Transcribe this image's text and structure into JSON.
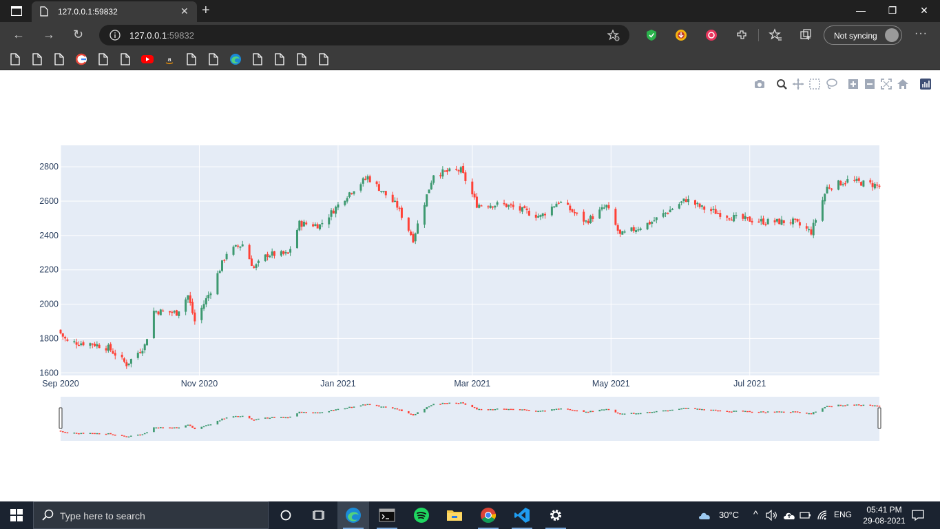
{
  "browser": {
    "tab_title": "127.0.0.1:59832",
    "url_host": "127.0.0.1",
    "url_port": ":59832",
    "sync_label": "Not syncing",
    "bookmarks": [
      "file-icon",
      "file-icon",
      "file-icon",
      "google-icon",
      "file-icon",
      "file-icon",
      "youtube-icon",
      "amazon-icon",
      "file-icon",
      "file-icon",
      "edge-icon",
      "file-icon",
      "file-icon",
      "file-icon",
      "file-icon"
    ]
  },
  "modebar": [
    "camera-icon",
    "zoom-icon",
    "pan-icon",
    "box-select-icon",
    "lasso-icon",
    "zoom-in-icon",
    "zoom-out-icon",
    "autoscale-icon",
    "reset-axes-icon",
    "plotly-logo-icon"
  ],
  "chart_data": {
    "type": "candlestick",
    "x_start": "2020-09-01",
    "x_end": "2021-08-27",
    "x_ticks": [
      {
        "date": "2020-09-01",
        "label": "Sep 2020"
      },
      {
        "date": "2020-11-01",
        "label": "Nov 2020"
      },
      {
        "date": "2021-01-01",
        "label": "Jan 2021"
      },
      {
        "date": "2021-03-01",
        "label": "Mar 2021"
      },
      {
        "date": "2021-05-01",
        "label": "May 2021"
      },
      {
        "date": "2021-07-01",
        "label": "Jul 2021"
      }
    ],
    "y_ticks": [
      1600,
      1800,
      2000,
      2200,
      2400,
      2600,
      2800
    ],
    "ylim": [
      1585,
      2925
    ],
    "grid": true,
    "legend": "none",
    "rangeslider": true,
    "colors": {
      "increasing": "#3d9970",
      "decreasing": "#ff4136",
      "plot_bg": "#e5ecf6"
    },
    "close_anchors": [
      [
        "2020-09-01",
        1830
      ],
      [
        "2020-09-04",
        1780
      ],
      [
        "2020-09-15",
        1770
      ],
      [
        "2020-09-22",
        1745
      ],
      [
        "2020-09-30",
        1650
      ],
      [
        "2020-10-08",
        1760
      ],
      [
        "2020-10-12",
        1960
      ],
      [
        "2020-10-22",
        1950
      ],
      [
        "2020-10-27",
        2050
      ],
      [
        "2020-10-30",
        1900
      ],
      [
        "2020-11-06",
        2080
      ],
      [
        "2020-11-13",
        2300
      ],
      [
        "2020-11-20",
        2350
      ],
      [
        "2020-11-25",
        2210
      ],
      [
        "2020-12-01",
        2290
      ],
      [
        "2020-12-10",
        2290
      ],
      [
        "2020-12-15",
        2470
      ],
      [
        "2020-12-24",
        2460
      ],
      [
        "2021-01-06",
        2650
      ],
      [
        "2021-01-14",
        2740
      ],
      [
        "2021-01-21",
        2650
      ],
      [
        "2021-01-27",
        2570
      ],
      [
        "2021-02-03",
        2380
      ],
      [
        "2021-02-12",
        2760
      ],
      [
        "2021-02-24",
        2780
      ],
      [
        "2021-03-03",
        2580
      ],
      [
        "2021-03-15",
        2580
      ],
      [
        "2021-03-31",
        2510
      ],
      [
        "2021-04-08",
        2600
      ],
      [
        "2021-04-20",
        2480
      ],
      [
        "2021-04-29",
        2570
      ],
      [
        "2021-05-05",
        2400
      ],
      [
        "2021-05-19",
        2480
      ],
      [
        "2021-06-03",
        2610
      ],
      [
        "2021-06-10",
        2560
      ],
      [
        "2021-06-25",
        2500
      ],
      [
        "2021-07-08",
        2480
      ],
      [
        "2021-07-20",
        2480
      ],
      [
        "2021-07-28",
        2420
      ],
      [
        "2021-08-04",
        2680
      ],
      [
        "2021-08-13",
        2720
      ],
      [
        "2021-08-27",
        2690
      ]
    ]
  },
  "taskbar": {
    "search_placeholder": "Type here to search",
    "weather": "30°C",
    "language": "ENG",
    "time": "05:41 PM",
    "date": "29-08-2021"
  }
}
